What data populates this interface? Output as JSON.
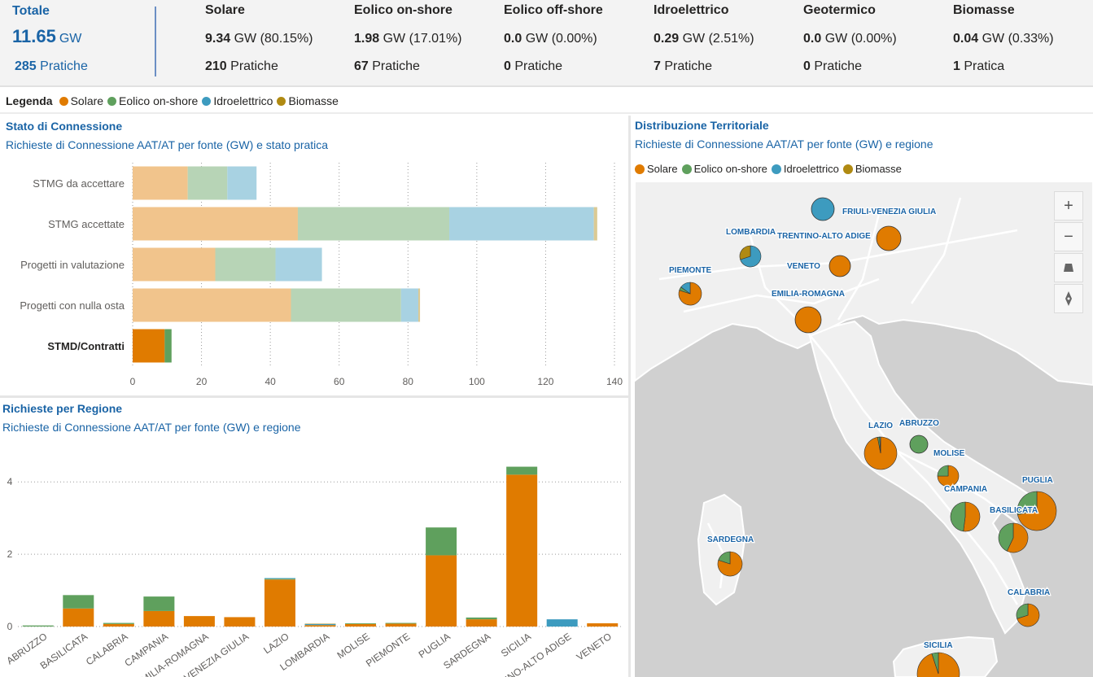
{
  "kpi": {
    "total": {
      "title": "Totale",
      "value": "11.65",
      "unit": "GW",
      "pratiche_count": "285",
      "pratiche_label": "Pratiche"
    },
    "items": [
      {
        "name": "Solare",
        "value": "9.34",
        "unit_pct": "GW (80.15%)",
        "pratiche_count": "210",
        "pratiche_label": "Pratiche"
      },
      {
        "name": "Eolico on-shore",
        "value": "1.98",
        "unit_pct": "GW (17.01%)",
        "pratiche_count": "67",
        "pratiche_label": "Pratiche"
      },
      {
        "name": "Eolico off-shore",
        "value": "0.0",
        "unit_pct": "GW (0.00%)",
        "pratiche_count": "0",
        "pratiche_label": "Pratiche"
      },
      {
        "name": "Idroelettrico",
        "value": "0.29",
        "unit_pct": "GW (2.51%)",
        "pratiche_count": "7",
        "pratiche_label": "Pratiche"
      },
      {
        "name": "Geotermico",
        "value": "0.0",
        "unit_pct": "GW (0.00%)",
        "pratiche_count": "0",
        "pratiche_label": "Pratiche"
      },
      {
        "name": "Biomasse",
        "value": "0.04",
        "unit_pct": "GW (0.33%)",
        "pratiche_count": "1",
        "pratiche_label": "Pratica"
      }
    ]
  },
  "legend": {
    "title": "Legenda",
    "items": [
      {
        "label": "Solare",
        "color": "#e07b00"
      },
      {
        "label": "Eolico on-shore",
        "color": "#5fa05d"
      },
      {
        "label": "Idroelettrico",
        "color": "#3d9bbf"
      },
      {
        "label": "Biomasse",
        "color": "#b08a12"
      }
    ]
  },
  "panels": {
    "stato": {
      "title": "Stato di Connessione",
      "subtitle": "Richieste di Connessione AAT/AT per fonte (GW) e stato pratica"
    },
    "regione": {
      "title": "Richieste per Regione",
      "subtitle": "Richieste di Connessione AAT/AT per fonte (GW) e regione"
    },
    "mappa": {
      "title": "Distribuzione Territoriale",
      "subtitle": "Richieste di Connessione AAT/AT per fonte (GW) e regione"
    }
  },
  "chart_data": [
    {
      "type": "bar",
      "orientation": "horizontal",
      "stacked": true,
      "categories": [
        "STMG da accettare",
        "STMG accettate",
        "Progetti in valutazione",
        "Progetti con nulla osta",
        "STMD/Contratti"
      ],
      "highlighted_category": "STMD/Contratti",
      "series": [
        {
          "name": "Solare",
          "values": [
            16,
            48,
            24,
            46,
            9.3
          ],
          "color": "#e07b00"
        },
        {
          "name": "Eolico on-shore",
          "values": [
            11.5,
            44,
            17.5,
            32,
            2
          ],
          "color": "#5fa05d"
        },
        {
          "name": "Idroelettrico",
          "values": [
            8.5,
            42,
            13.5,
            5,
            0
          ],
          "color": "#3d9bbf"
        },
        {
          "name": "Biomasse",
          "values": [
            0,
            1,
            0,
            0.5,
            0
          ],
          "color": "#b08a12"
        }
      ],
      "xlim": [
        0,
        140
      ],
      "xticks": [
        0,
        20,
        40,
        60,
        80,
        100,
        120,
        140
      ],
      "grid": true
    },
    {
      "type": "bar",
      "stacked": true,
      "categories": [
        "ABRUZZO",
        "BASILICATA",
        "CALABRIA",
        "CAMPANIA",
        "EMILIA-ROMAGNA",
        "FRIULI-VENEZIA GIULIA",
        "LAZIO",
        "LOMBARDIA",
        "MOLISE",
        "PIEMONTE",
        "PUGLIA",
        "SARDEGNA",
        "SICILIA",
        "TRENTINO-ALTO ADIGE",
        "VENETO"
      ],
      "series": [
        {
          "name": "Solare",
          "values": [
            0,
            0.5,
            0.07,
            0.43,
            0.29,
            0.26,
            1.3,
            0.04,
            0.07,
            0.08,
            1.97,
            0.2,
            4.2,
            0,
            0.09
          ],
          "color": "#e07b00"
        },
        {
          "name": "Eolico on-shore",
          "values": [
            0.03,
            0.37,
            0.03,
            0.4,
            0,
            0,
            0.02,
            0,
            0.02,
            0.02,
            0.77,
            0.05,
            0.22,
            0,
            0
          ],
          "color": "#5fa05d"
        },
        {
          "name": "Idroelettrico",
          "values": [
            0,
            0,
            0,
            0,
            0,
            0,
            0.02,
            0.03,
            0,
            0,
            0,
            0,
            0,
            0.2,
            0
          ],
          "color": "#3d9bbf"
        },
        {
          "name": "Biomasse",
          "values": [
            0,
            0,
            0,
            0,
            0,
            0,
            0,
            0.01,
            0,
            0,
            0,
            0,
            0,
            0,
            0
          ],
          "color": "#b08a12"
        }
      ],
      "ylim": [
        0,
        4.5
      ],
      "yticks": [
        0,
        2,
        4
      ],
      "grid": true
    }
  ],
  "map": {
    "legend": [
      {
        "label": "Solare",
        "color": "#e07b00"
      },
      {
        "label": "Eolico on-shore",
        "color": "#5fa05d"
      },
      {
        "label": "Idroelettrico",
        "color": "#3d9bbf"
      },
      {
        "label": "Biomasse",
        "color": "#b08a12"
      }
    ],
    "controls": [
      "zoom-in",
      "zoom-out",
      "tilt",
      "compass"
    ],
    "regions": [
      {
        "label": "FRIULI-VENEZIA GIULIA",
        "shares": [
          0,
          0,
          1,
          0
        ]
      },
      {
        "label": "LOMBARDIA",
        "shares": [
          0,
          0,
          0.7,
          0.3
        ]
      },
      {
        "label": "TRENTINO-ALTO ADIGE",
        "shares": [
          1,
          0,
          0,
          0
        ]
      },
      {
        "label": "PIEMONTE",
        "shares": [
          0.8,
          0.05,
          0.15,
          0
        ]
      },
      {
        "label": "VENETO",
        "shares": [
          1,
          0,
          0,
          0
        ]
      },
      {
        "label": "EMILIA-ROMAGNA",
        "shares": [
          1,
          0,
          0,
          0
        ]
      },
      {
        "label": "LAZIO",
        "shares": [
          0.97,
          0.02,
          0.01,
          0
        ]
      },
      {
        "label": "ABRUZZO",
        "shares": [
          0,
          1,
          0,
          0
        ]
      },
      {
        "label": "MOLISE",
        "shares": [
          0.75,
          0.25,
          0,
          0
        ]
      },
      {
        "label": "CAMPANIA",
        "shares": [
          0.52,
          0.48,
          0,
          0
        ]
      },
      {
        "label": "PUGLIA",
        "shares": [
          0.72,
          0.28,
          0,
          0
        ]
      },
      {
        "label": "BASILICATA",
        "shares": [
          0.57,
          0.43,
          0,
          0
        ]
      },
      {
        "label": "SARDEGNA",
        "shares": [
          0.8,
          0.2,
          0,
          0
        ]
      },
      {
        "label": "CALABRIA",
        "shares": [
          0.7,
          0.3,
          0,
          0
        ]
      },
      {
        "label": "SICILIA",
        "shares": [
          0.95,
          0.05,
          0,
          0
        ]
      }
    ]
  }
}
